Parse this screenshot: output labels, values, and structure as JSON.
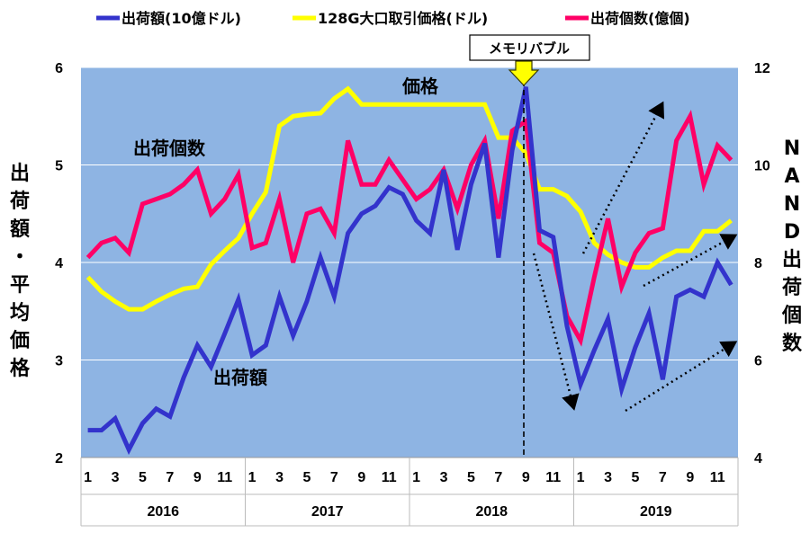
{
  "chart_data": {
    "type": "line",
    "legend": [
      {
        "label": "出荷額(10億ドル)",
        "color": "#3333cc"
      },
      {
        "label": "128G大口取引価格(ドル)",
        "color": "#ffff00"
      },
      {
        "label": "出荷個数(億個)",
        "color": "#ff0066"
      }
    ],
    "left_axis_label": "出荷額・平均価格",
    "right_axis_label": "NAND出荷個数",
    "left_ylim": [
      2,
      6
    ],
    "left_yticks": [
      "2",
      "3",
      "4",
      "5",
      "6"
    ],
    "right_ylim": [
      4,
      12
    ],
    "right_yticks": [
      "4",
      "6",
      "8",
      "10",
      "12"
    ],
    "month_ticks": [
      "1",
      "3",
      "5",
      "7",
      "9",
      "11",
      "1",
      "3",
      "5",
      "7",
      "9",
      "11",
      "1",
      "3",
      "5",
      "7",
      "9",
      "11",
      "1",
      "3",
      "5",
      "7",
      "9",
      "11"
    ],
    "years": [
      "2016",
      "2017",
      "2018",
      "2019"
    ],
    "annotations": {
      "price": "価格",
      "units": "出荷個数",
      "shipments": "出荷額",
      "bubble": "メモリバブル"
    },
    "series": [
      {
        "name": "出荷額(10億ドル)",
        "axis": "left",
        "color": "#3333cc",
        "values": [
          2.28,
          2.28,
          2.4,
          2.08,
          2.35,
          2.5,
          2.42,
          2.82,
          3.15,
          2.93,
          3.27,
          3.62,
          3.05,
          3.15,
          3.65,
          3.25,
          3.6,
          4.05,
          3.65,
          4.3,
          4.5,
          4.58,
          4.77,
          4.7,
          4.43,
          4.3,
          4.95,
          4.13,
          4.8,
          5.22,
          4.05,
          5.15,
          5.8,
          4.33,
          4.26,
          3.35,
          2.75,
          3.1,
          3.42,
          2.7,
          3.13,
          3.48,
          2.8,
          3.65,
          3.72,
          3.65,
          4.0,
          3.77
        ]
      },
      {
        "name": "128G大口取引価格(ドル)",
        "axis": "left",
        "color": "#ffff00",
        "values": [
          3.85,
          3.7,
          3.6,
          3.52,
          3.52,
          3.6,
          3.67,
          3.73,
          3.75,
          3.98,
          4.12,
          4.25,
          4.5,
          4.72,
          5.4,
          5.5,
          5.52,
          5.53,
          5.68,
          5.78,
          5.62,
          5.62,
          5.62,
          5.62,
          5.62,
          5.62,
          5.62,
          5.62,
          5.62,
          5.62,
          5.28,
          5.28,
          5.12,
          4.75,
          4.75,
          4.68,
          4.52,
          4.2,
          4.08,
          4.0,
          3.95,
          3.95,
          4.05,
          4.12,
          4.12,
          4.32,
          4.32,
          4.43
        ]
      },
      {
        "name": "出荷個数(億個)",
        "axis": "right",
        "color": "#ff0066",
        "values": [
          8.1,
          8.4,
          8.5,
          8.2,
          9.2,
          9.3,
          9.4,
          9.6,
          9.9,
          9.0,
          9.3,
          9.8,
          8.3,
          8.4,
          9.3,
          8.0,
          9.0,
          9.1,
          8.6,
          10.5,
          9.6,
          9.6,
          10.1,
          9.7,
          9.3,
          9.5,
          9.9,
          9.1,
          10.0,
          10.5,
          8.9,
          10.7,
          10.9,
          8.4,
          8.2,
          6.9,
          6.4,
          7.7,
          8.9,
          7.5,
          8.2,
          8.6,
          8.7,
          10.5,
          11.0,
          9.6,
          10.4,
          10.1
        ]
      }
    ],
    "overlay_values": {
      "units_jan2019": 6.4,
      "units_apr2019": 7.5,
      "units_jul2019": 8.7,
      "units_dec2019": 10.1
    }
  }
}
